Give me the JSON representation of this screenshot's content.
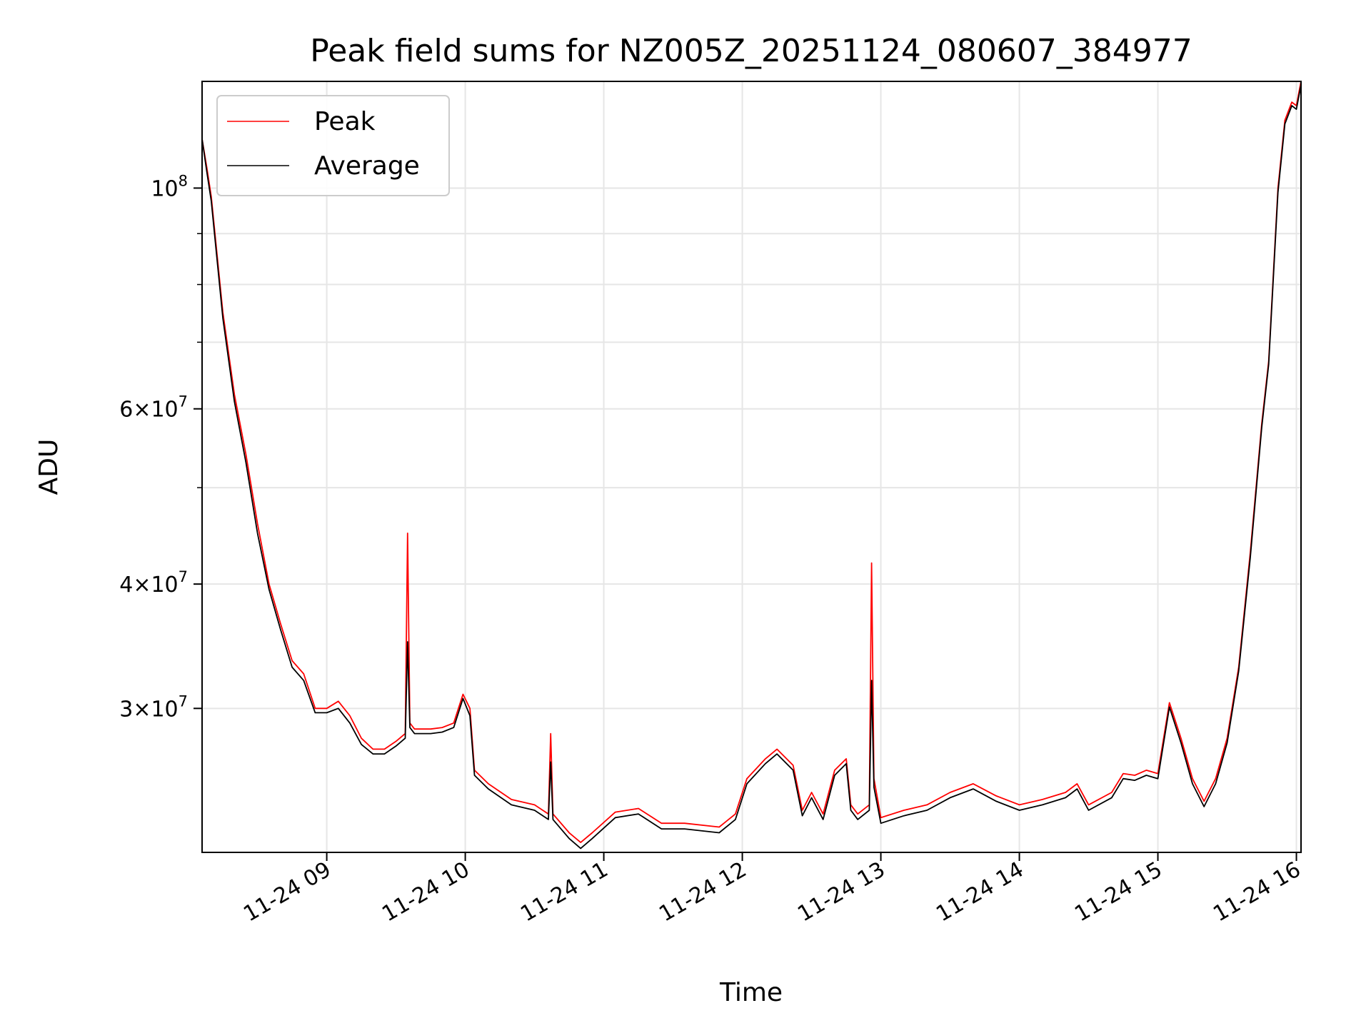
{
  "chart_data": {
    "type": "line",
    "title": "Peak field sums for NZ005Z_20251124_080607_384977",
    "xlabel": "Time",
    "ylabel": "ADU",
    "yscale": "log",
    "ylim": [
      21500000,
      128000000
    ],
    "xlim": [
      "2025-11-24 08:06",
      "2025-11-24 16:02"
    ],
    "grid": true,
    "legend": {
      "placement": "top-left",
      "entries": [
        {
          "label": "Peak",
          "color": "#ff0000"
        },
        {
          "label": "Average",
          "color": "#000000"
        }
      ]
    },
    "x_ticks": [
      {
        "t": "2025-11-24 09:00",
        "label": "11-24 09"
      },
      {
        "t": "2025-11-24 10:00",
        "label": "11-24 10"
      },
      {
        "t": "2025-11-24 11:00",
        "label": "11-24 11"
      },
      {
        "t": "2025-11-24 12:00",
        "label": "11-24 12"
      },
      {
        "t": "2025-11-24 13:00",
        "label": "11-24 13"
      },
      {
        "t": "2025-11-24 14:00",
        "label": "11-24 14"
      },
      {
        "t": "2025-11-24 15:00",
        "label": "11-24 15"
      },
      {
        "t": "2025-11-24 16:00",
        "label": "11-24 16"
      }
    ],
    "y_ticks": [
      {
        "value": 30000000,
        "base": "3",
        "exp": "7"
      },
      {
        "value": 40000000,
        "base": "4",
        "exp": "7"
      },
      {
        "value": 60000000,
        "base": "6",
        "exp": "7"
      },
      {
        "value": 100000000,
        "base": "",
        "exp": "8"
      }
    ],
    "y_minor_ticks": [
      50000000,
      70000000,
      80000000,
      90000000
    ],
    "series": [
      {
        "name": "Peak",
        "color": "#ff0000",
        "x": [
          "2025-11-24 08:06",
          "2025-11-24 08:08",
          "2025-11-24 08:10",
          "2025-11-24 08:12",
          "2025-11-24 08:15",
          "2025-11-24 08:20",
          "2025-11-24 08:25",
          "2025-11-24 08:30",
          "2025-11-24 08:35",
          "2025-11-24 08:40",
          "2025-11-24 08:45",
          "2025-11-24 08:50",
          "2025-11-24 08:55",
          "2025-11-24 09:00",
          "2025-11-24 09:05",
          "2025-11-24 09:10",
          "2025-11-24 09:15",
          "2025-11-24 09:20",
          "2025-11-24 09:25",
          "2025-11-24 09:30",
          "2025-11-24 09:34",
          "2025-11-24 09:35",
          "2025-11-24 09:36",
          "2025-11-24 09:38",
          "2025-11-24 09:45",
          "2025-11-24 09:50",
          "2025-11-24 09:55",
          "2025-11-24 09:59",
          "2025-11-24 10:02",
          "2025-11-24 10:04",
          "2025-11-24 10:10",
          "2025-11-24 10:20",
          "2025-11-24 10:30",
          "2025-11-24 10:36",
          "2025-11-24 10:37",
          "2025-11-24 10:38",
          "2025-11-24 10:45",
          "2025-11-24 10:50",
          "2025-11-24 10:55",
          "2025-11-24 11:05",
          "2025-11-24 11:15",
          "2025-11-24 11:25",
          "2025-11-24 11:35",
          "2025-11-24 11:50",
          "2025-11-24 11:57",
          "2025-11-24 12:02",
          "2025-11-24 12:10",
          "2025-11-24 12:15",
          "2025-11-24 12:22",
          "2025-11-24 12:26",
          "2025-11-24 12:30",
          "2025-11-24 12:35",
          "2025-11-24 12:40",
          "2025-11-24 12:45",
          "2025-11-24 12:47",
          "2025-11-24 12:50",
          "2025-11-24 12:55",
          "2025-11-24 12:56",
          "2025-11-24 12:57",
          "2025-11-24 13:00",
          "2025-11-24 13:10",
          "2025-11-24 13:20",
          "2025-11-24 13:30",
          "2025-11-24 13:40",
          "2025-11-24 13:50",
          "2025-11-24 14:00",
          "2025-11-24 14:10",
          "2025-11-24 14:20",
          "2025-11-24 14:25",
          "2025-11-24 14:30",
          "2025-11-24 14:40",
          "2025-11-24 14:45",
          "2025-11-24 14:50",
          "2025-11-24 14:55",
          "2025-11-24 15:00",
          "2025-11-24 15:05",
          "2025-11-24 15:10",
          "2025-11-24 15:15",
          "2025-11-24 15:20",
          "2025-11-24 15:25",
          "2025-11-24 15:30",
          "2025-11-24 15:35",
          "2025-11-24 15:40",
          "2025-11-24 15:45",
          "2025-11-24 15:48",
          "2025-11-24 15:52",
          "2025-11-24 15:55",
          "2025-11-24 15:58",
          "2025-11-24 16:00",
          "2025-11-24 16:02"
        ],
        "y": [
          112000000,
          105000000,
          98000000,
          88000000,
          75000000,
          62000000,
          54000000,
          46000000,
          40000000,
          36500000,
          33500000,
          32500000,
          30000000,
          30000000,
          30500000,
          29500000,
          28000000,
          27300000,
          27300000,
          27800000,
          28300000,
          45000000,
          29000000,
          28600000,
          28600000,
          28700000,
          29000000,
          31000000,
          30000000,
          26000000,
          25200000,
          24300000,
          24000000,
          23500000,
          28300000,
          23500000,
          22500000,
          22000000,
          22500000,
          23600000,
          23800000,
          23000000,
          23000000,
          22800000,
          23500000,
          25500000,
          26700000,
          27300000,
          26300000,
          23700000,
          24700000,
          23500000,
          26000000,
          26700000,
          24000000,
          23500000,
          24000000,
          42000000,
          25500000,
          23300000,
          23700000,
          24000000,
          24700000,
          25200000,
          24500000,
          24000000,
          24300000,
          24700000,
          25200000,
          24000000,
          24700000,
          25800000,
          25700000,
          26000000,
          25800000,
          30400000,
          28000000,
          25500000,
          24200000,
          25500000,
          28000000,
          33000000,
          43000000,
          58000000,
          67000000,
          100000000,
          117000000,
          122000000,
          121000000,
          128000000
        ]
      },
      {
        "name": "Average",
        "color": "#000000",
        "x": [
          "2025-11-24 08:06",
          "2025-11-24 08:08",
          "2025-11-24 08:10",
          "2025-11-24 08:12",
          "2025-11-24 08:15",
          "2025-11-24 08:20",
          "2025-11-24 08:25",
          "2025-11-24 08:30",
          "2025-11-24 08:35",
          "2025-11-24 08:40",
          "2025-11-24 08:45",
          "2025-11-24 08:50",
          "2025-11-24 08:55",
          "2025-11-24 09:00",
          "2025-11-24 09:05",
          "2025-11-24 09:10",
          "2025-11-24 09:15",
          "2025-11-24 09:20",
          "2025-11-24 09:25",
          "2025-11-24 09:30",
          "2025-11-24 09:34",
          "2025-11-24 09:35",
          "2025-11-24 09:36",
          "2025-11-24 09:38",
          "2025-11-24 09:45",
          "2025-11-24 09:50",
          "2025-11-24 09:55",
          "2025-11-24 09:59",
          "2025-11-24 10:02",
          "2025-11-24 10:04",
          "2025-11-24 10:10",
          "2025-11-24 10:20",
          "2025-11-24 10:30",
          "2025-11-24 10:36",
          "2025-11-24 10:37",
          "2025-11-24 10:38",
          "2025-11-24 10:45",
          "2025-11-24 10:50",
          "2025-11-24 10:55",
          "2025-11-24 11:05",
          "2025-11-24 11:15",
          "2025-11-24 11:25",
          "2025-11-24 11:35",
          "2025-11-24 11:50",
          "2025-11-24 11:57",
          "2025-11-24 12:02",
          "2025-11-24 12:10",
          "2025-11-24 12:15",
          "2025-11-24 12:22",
          "2025-11-24 12:26",
          "2025-11-24 12:30",
          "2025-11-24 12:35",
          "2025-11-24 12:40",
          "2025-11-24 12:45",
          "2025-11-24 12:47",
          "2025-11-24 12:50",
          "2025-11-24 12:55",
          "2025-11-24 12:56",
          "2025-11-24 12:57",
          "2025-11-24 13:00",
          "2025-11-24 13:10",
          "2025-11-24 13:20",
          "2025-11-24 13:30",
          "2025-11-24 13:40",
          "2025-11-24 13:50",
          "2025-11-24 14:00",
          "2025-11-24 14:10",
          "2025-11-24 14:20",
          "2025-11-24 14:25",
          "2025-11-24 14:30",
          "2025-11-24 14:40",
          "2025-11-24 14:45",
          "2025-11-24 14:50",
          "2025-11-24 14:55",
          "2025-11-24 15:00",
          "2025-11-24 15:05",
          "2025-11-24 15:10",
          "2025-11-24 15:15",
          "2025-11-24 15:20",
          "2025-11-24 15:25",
          "2025-11-24 15:30",
          "2025-11-24 15:35",
          "2025-11-24 15:40",
          "2025-11-24 15:45",
          "2025-11-24 15:48",
          "2025-11-24 15:52",
          "2025-11-24 15:55",
          "2025-11-24 15:58",
          "2025-11-24 16:00",
          "2025-11-24 16:02"
        ],
        "y": [
          112000000,
          104000000,
          97000000,
          87000000,
          74000000,
          61000000,
          53000000,
          45000000,
          39500000,
          36000000,
          33000000,
          32000000,
          29700000,
          29700000,
          30000000,
          29000000,
          27600000,
          27000000,
          27000000,
          27500000,
          28000000,
          35000000,
          28700000,
          28300000,
          28300000,
          28400000,
          28700000,
          30700000,
          29500000,
          25700000,
          24900000,
          24000000,
          23700000,
          23200000,
          26500000,
          23200000,
          22200000,
          21700000,
          22200000,
          23300000,
          23500000,
          22700000,
          22700000,
          22500000,
          23200000,
          25200000,
          26400000,
          27000000,
          26000000,
          23400000,
          24400000,
          23200000,
          25700000,
          26400000,
          23700000,
          23200000,
          23700000,
          32000000,
          25000000,
          23000000,
          23400000,
          23700000,
          24400000,
          24900000,
          24200000,
          23700000,
          24000000,
          24400000,
          24900000,
          23700000,
          24400000,
          25500000,
          25400000,
          25700000,
          25500000,
          30100000,
          27700000,
          25200000,
          23900000,
          25200000,
          27700000,
          32700000,
          42500000,
          57500000,
          66500000,
          99000000,
          116000000,
          121000000,
          120000000,
          127000000
        ]
      }
    ]
  }
}
